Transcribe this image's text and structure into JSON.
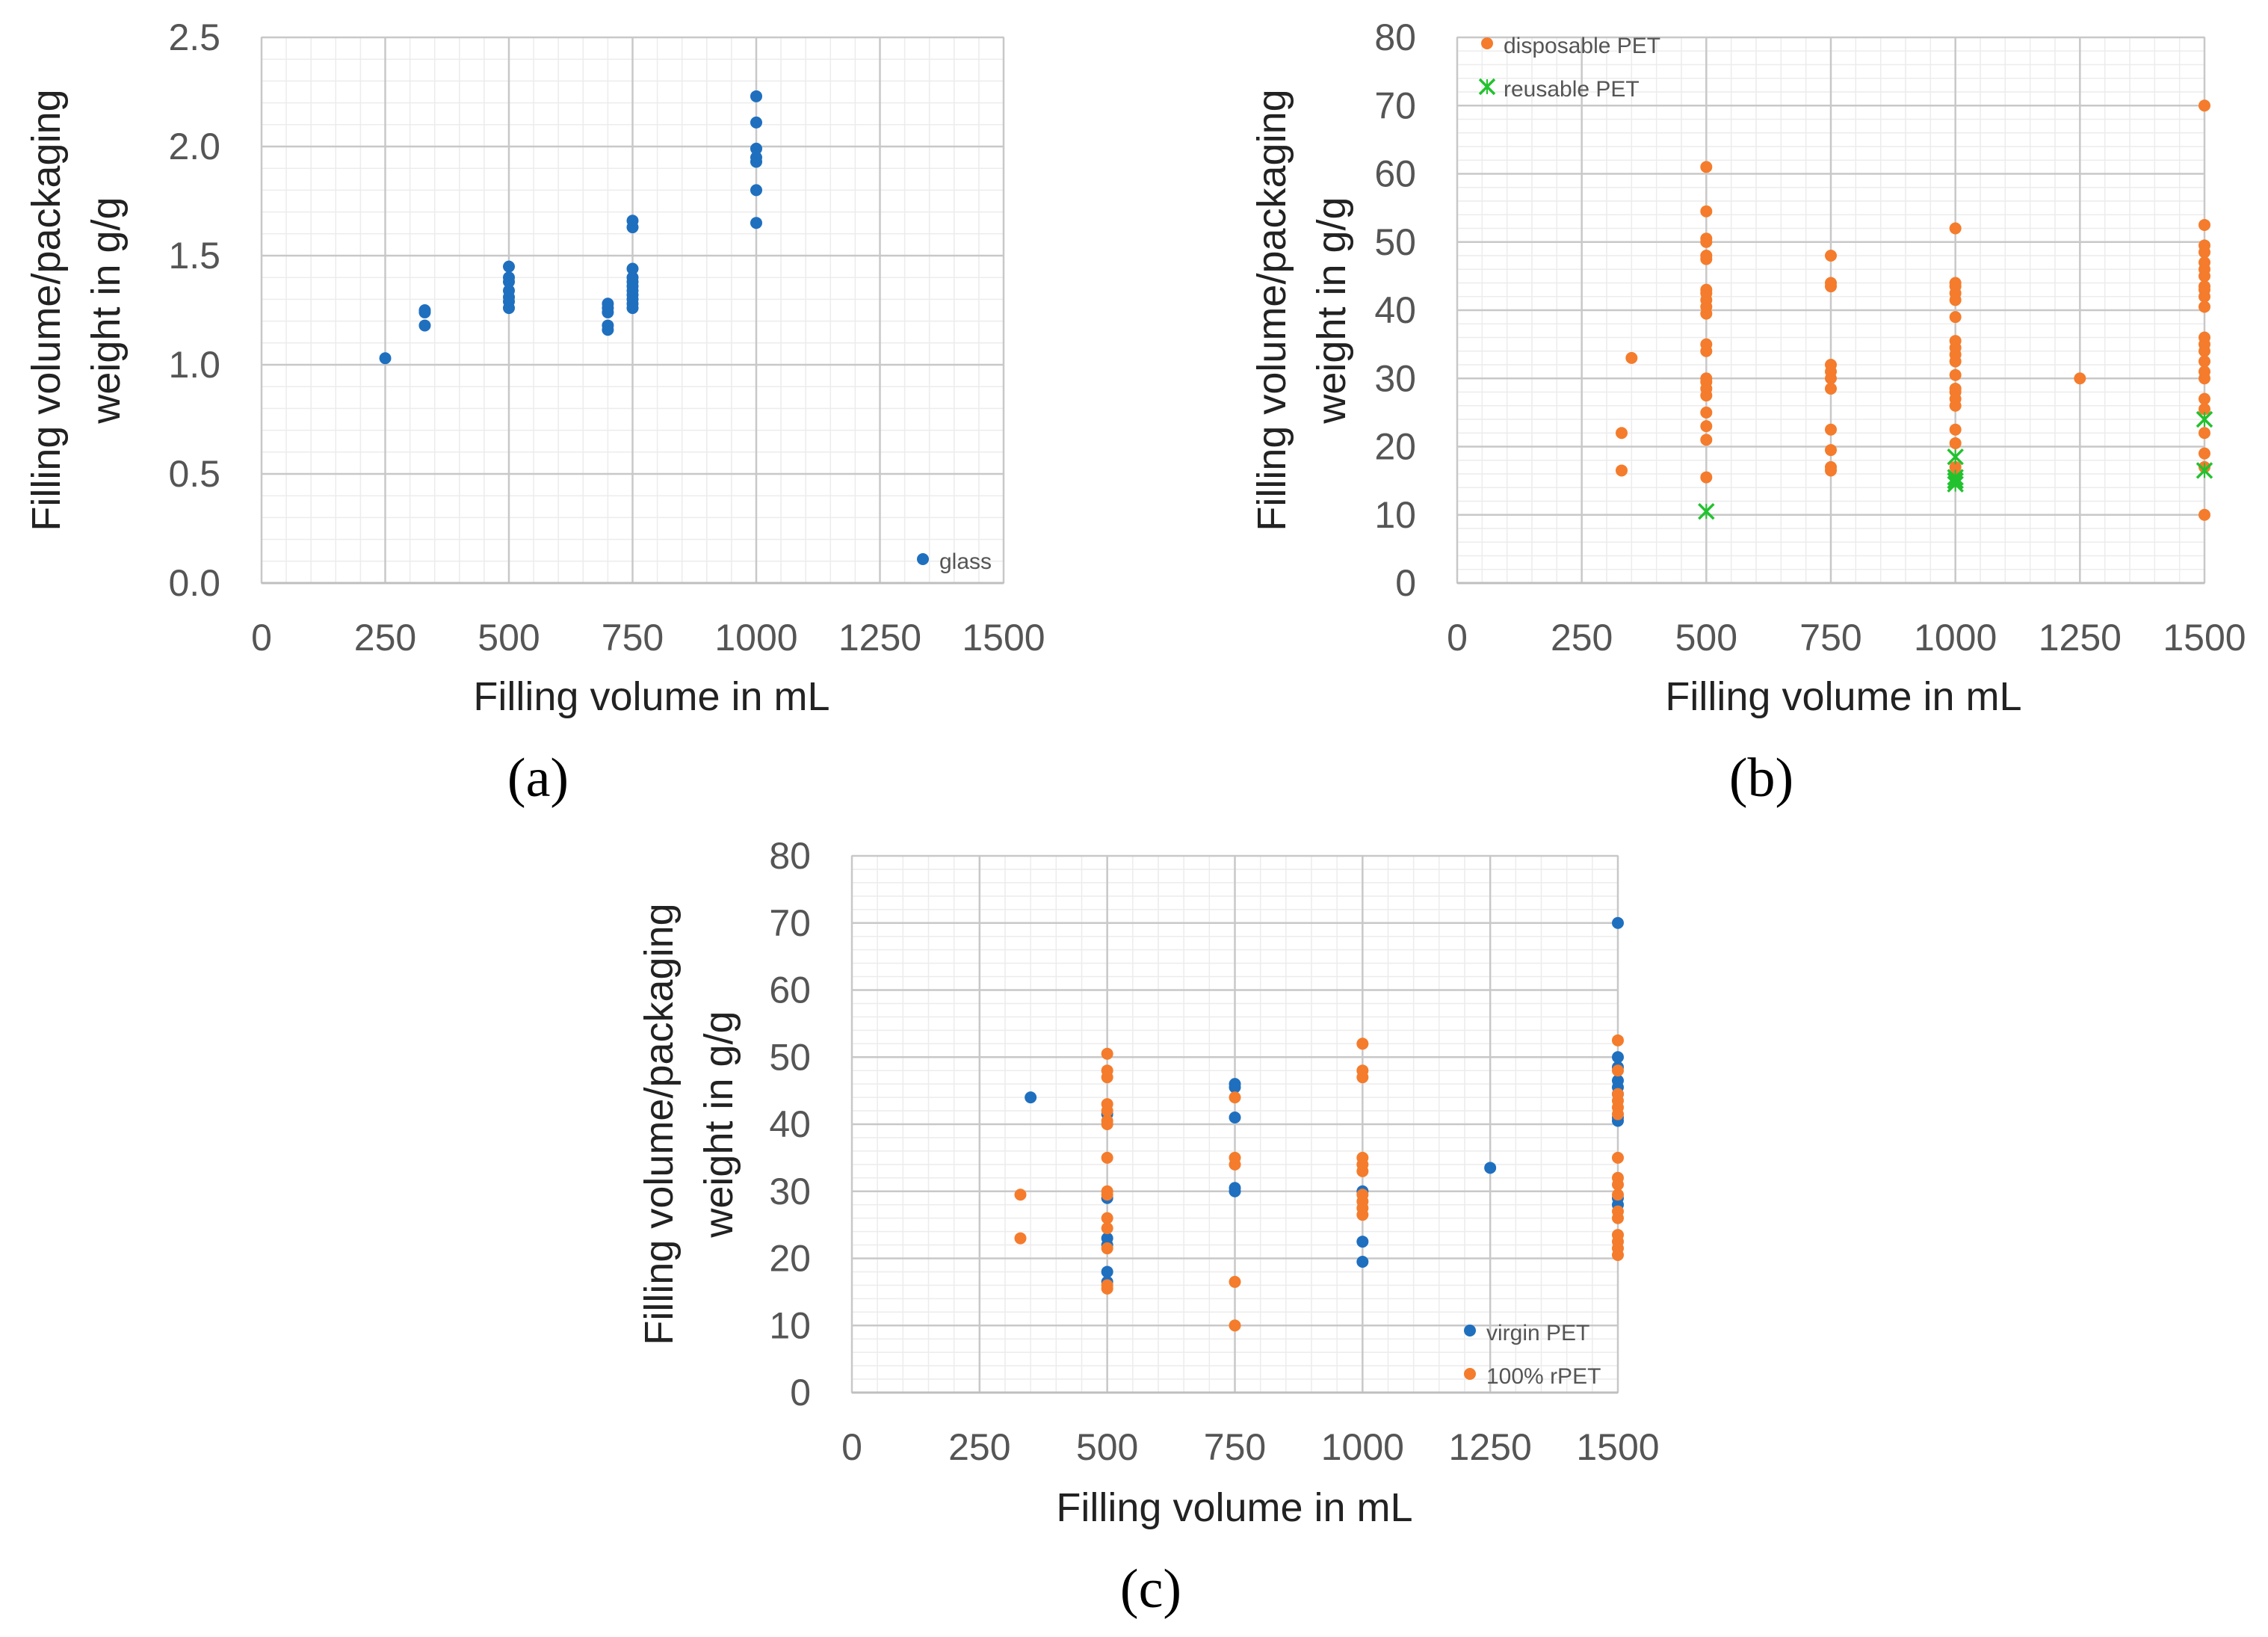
{
  "figure": {
    "panels": [
      "(a)",
      "(b)",
      "(c)"
    ]
  },
  "chart_data": [
    {
      "id": "a",
      "panel_label": "(a)",
      "type": "scatter",
      "xlabel": "Filling volume in mL",
      "ylabel_lines": [
        "Filling volume/packaging",
        "weight in g/g"
      ],
      "xlim": [
        0,
        1500
      ],
      "ylim": [
        0,
        2.5
      ],
      "xticks": [
        0,
        250,
        500,
        750,
        1000,
        1250,
        1500
      ],
      "xtick_labels": [
        "0",
        "250",
        "500",
        "750",
        "1000",
        "1250",
        "1500"
      ],
      "yticks": [
        0,
        0.5,
        1.0,
        1.5,
        2.0,
        2.5
      ],
      "ytick_labels": [
        "0.0",
        "0.5",
        "1.0",
        "1.5",
        "2.0",
        "2.5"
      ],
      "legend_position": "bottom-right",
      "series": [
        {
          "name": "glass",
          "marker": "circle",
          "color": "#1F6FBF",
          "points": [
            [
              250,
              1.03
            ],
            [
              330,
              1.18
            ],
            [
              330,
              1.24
            ],
            [
              330,
              1.25
            ],
            [
              500,
              1.26
            ],
            [
              500,
              1.29
            ],
            [
              500,
              1.31
            ],
            [
              500,
              1.34
            ],
            [
              500,
              1.38
            ],
            [
              500,
              1.4
            ],
            [
              500,
              1.45
            ],
            [
              700,
              1.16
            ],
            [
              700,
              1.18
            ],
            [
              700,
              1.24
            ],
            [
              700,
              1.26
            ],
            [
              700,
              1.28
            ],
            [
              750,
              1.26
            ],
            [
              750,
              1.28
            ],
            [
              750,
              1.3
            ],
            [
              750,
              1.32
            ],
            [
              750,
              1.34
            ],
            [
              750,
              1.36
            ],
            [
              750,
              1.38
            ],
            [
              750,
              1.4
            ],
            [
              750,
              1.44
            ],
            [
              750,
              1.63
            ],
            [
              750,
              1.66
            ],
            [
              1000,
              1.65
            ],
            [
              1000,
              1.8
            ],
            [
              1000,
              1.93
            ],
            [
              1000,
              1.95
            ],
            [
              1000,
              1.99
            ],
            [
              1000,
              2.11
            ],
            [
              1000,
              2.23
            ]
          ]
        }
      ]
    },
    {
      "id": "b",
      "panel_label": "(b)",
      "type": "scatter",
      "xlabel": "Filling volume in mL",
      "ylabel_lines": [
        "Filling volume/packaging",
        "weight in g/g"
      ],
      "xlim": [
        0,
        1500
      ],
      "ylim": [
        0,
        80
      ],
      "xticks": [
        0,
        250,
        500,
        750,
        1000,
        1250,
        1500
      ],
      "xtick_labels": [
        "0",
        "250",
        "500",
        "750",
        "1000",
        "1250",
        "1500"
      ],
      "yticks": [
        0,
        10,
        20,
        30,
        40,
        50,
        60,
        70,
        80
      ],
      "ytick_labels": [
        "0",
        "10",
        "20",
        "30",
        "40",
        "50",
        "60",
        "70",
        "80"
      ],
      "legend_position": "top-left",
      "series": [
        {
          "name": "disposable PET",
          "marker": "circle",
          "color": "#F47C2C",
          "points": [
            [
              330,
              16.5
            ],
            [
              330,
              22
            ],
            [
              350,
              33
            ],
            [
              500,
              15.5
            ],
            [
              500,
              21
            ],
            [
              500,
              23
            ],
            [
              500,
              25
            ],
            [
              500,
              27.5
            ],
            [
              500,
              28.5
            ],
            [
              500,
              29.5
            ],
            [
              500,
              30
            ],
            [
              500,
              34
            ],
            [
              500,
              35
            ],
            [
              500,
              39.5
            ],
            [
              500,
              40.5
            ],
            [
              500,
              41.5
            ],
            [
              500,
              42.5
            ],
            [
              500,
              43
            ],
            [
              500,
              47.5
            ],
            [
              500,
              48
            ],
            [
              500,
              50
            ],
            [
              500,
              50.5
            ],
            [
              500,
              54.5
            ],
            [
              500,
              61
            ],
            [
              750,
              16.5
            ],
            [
              750,
              17
            ],
            [
              750,
              19.5
            ],
            [
              750,
              22.5
            ],
            [
              750,
              28.5
            ],
            [
              750,
              30
            ],
            [
              750,
              31
            ],
            [
              750,
              32
            ],
            [
              750,
              43.5
            ],
            [
              750,
              44
            ],
            [
              750,
              48
            ],
            [
              1000,
              15.5
            ],
            [
              1000,
              17
            ],
            [
              1000,
              20.5
            ],
            [
              1000,
              22.5
            ],
            [
              1000,
              26
            ],
            [
              1000,
              27
            ],
            [
              1000,
              28
            ],
            [
              1000,
              28.5
            ],
            [
              1000,
              30.5
            ],
            [
              1000,
              32.5
            ],
            [
              1000,
              33.5
            ],
            [
              1000,
              34.5
            ],
            [
              1000,
              35.5
            ],
            [
              1000,
              39
            ],
            [
              1000,
              41.5
            ],
            [
              1000,
              42.5
            ],
            [
              1000,
              43.5
            ],
            [
              1000,
              44
            ],
            [
              1000,
              52
            ],
            [
              1250,
              30
            ],
            [
              1500,
              10
            ],
            [
              1500,
              17
            ],
            [
              1500,
              19
            ],
            [
              1500,
              22
            ],
            [
              1500,
              25.5
            ],
            [
              1500,
              27
            ],
            [
              1500,
              30
            ],
            [
              1500,
              31
            ],
            [
              1500,
              32.5
            ],
            [
              1500,
              34
            ],
            [
              1500,
              35
            ],
            [
              1500,
              36
            ],
            [
              1500,
              40.5
            ],
            [
              1500,
              42
            ],
            [
              1500,
              43
            ],
            [
              1500,
              43.5
            ],
            [
              1500,
              45
            ],
            [
              1500,
              46
            ],
            [
              1500,
              47
            ],
            [
              1500,
              48.5
            ],
            [
              1500,
              49.5
            ],
            [
              1500,
              52.5
            ],
            [
              1500,
              70
            ]
          ]
        },
        {
          "name": "reusable PET",
          "marker": "x",
          "color": "#22C22E",
          "points": [
            [
              500,
              10.5
            ],
            [
              1000,
              14.5
            ],
            [
              1000,
              15
            ],
            [
              1000,
              15.5
            ],
            [
              1000,
              18.5
            ],
            [
              1500,
              16.5
            ],
            [
              1500,
              24
            ]
          ]
        }
      ]
    },
    {
      "id": "c",
      "panel_label": "(c)",
      "type": "scatter",
      "xlabel": "Filling volume in mL",
      "ylabel_lines": [
        "Filling volume/packaging",
        "weight in g/g"
      ],
      "xlim": [
        0,
        1500
      ],
      "ylim": [
        0,
        80
      ],
      "xticks": [
        0,
        250,
        500,
        750,
        1000,
        1250,
        1500
      ],
      "xtick_labels": [
        "0",
        "250",
        "500",
        "750",
        "1000",
        "1250",
        "1500"
      ],
      "yticks": [
        0,
        10,
        20,
        30,
        40,
        50,
        60,
        70,
        80
      ],
      "ytick_labels": [
        "0",
        "10",
        "20",
        "30",
        "40",
        "50",
        "60",
        "70",
        "80"
      ],
      "legend_position": "bottom-right",
      "series": [
        {
          "name": "virgin PET",
          "marker": "circle",
          "color": "#1F6FBF",
          "points": [
            [
              350,
              44
            ],
            [
              500,
              16.5
            ],
            [
              500,
              18
            ],
            [
              500,
              22
            ],
            [
              500,
              23
            ],
            [
              500,
              29
            ],
            [
              500,
              41.5
            ],
            [
              750,
              30
            ],
            [
              750,
              30.5
            ],
            [
              750,
              41
            ],
            [
              750,
              45.5
            ],
            [
              750,
              46
            ],
            [
              1000,
              19.5
            ],
            [
              1000,
              22.5
            ],
            [
              1000,
              30
            ],
            [
              1250,
              33.5
            ],
            [
              1500,
              28
            ],
            [
              1500,
              29
            ],
            [
              1500,
              40.5
            ],
            [
              1500,
              41
            ],
            [
              1500,
              44.5
            ],
            [
              1500,
              45.5
            ],
            [
              1500,
              46.5
            ],
            [
              1500,
              48.5
            ],
            [
              1500,
              50
            ],
            [
              1500,
              70
            ]
          ]
        },
        {
          "name": "100% rPET",
          "marker": "circle",
          "color": "#F47C2C",
          "points": [
            [
              330,
              23
            ],
            [
              330,
              29.5
            ],
            [
              500,
              15.5
            ],
            [
              500,
              16
            ],
            [
              500,
              21.5
            ],
            [
              500,
              24.5
            ],
            [
              500,
              26
            ],
            [
              500,
              29.5
            ],
            [
              500,
              30
            ],
            [
              500,
              35
            ],
            [
              500,
              40
            ],
            [
              500,
              40.5
            ],
            [
              500,
              42
            ],
            [
              500,
              43
            ],
            [
              500,
              47
            ],
            [
              500,
              48
            ],
            [
              500,
              50.5
            ],
            [
              750,
              10
            ],
            [
              750,
              16.5
            ],
            [
              750,
              34
            ],
            [
              750,
              35
            ],
            [
              750,
              44
            ],
            [
              1000,
              26.5
            ],
            [
              1000,
              27.5
            ],
            [
              1000,
              28.5
            ],
            [
              1000,
              29.5
            ],
            [
              1000,
              33
            ],
            [
              1000,
              34
            ],
            [
              1000,
              35
            ],
            [
              1000,
              47
            ],
            [
              1000,
              48
            ],
            [
              1000,
              52
            ],
            [
              1500,
              20.5
            ],
            [
              1500,
              21.5
            ],
            [
              1500,
              22.5
            ],
            [
              1500,
              23.5
            ],
            [
              1500,
              26
            ],
            [
              1500,
              27
            ],
            [
              1500,
              29.5
            ],
            [
              1500,
              31
            ],
            [
              1500,
              32
            ],
            [
              1500,
              35
            ],
            [
              1500,
              41.5
            ],
            [
              1500,
              42.5
            ],
            [
              1500,
              43.5
            ],
            [
              1500,
              44.5
            ],
            [
              1500,
              48
            ],
            [
              1500,
              52.5
            ]
          ]
        }
      ]
    }
  ]
}
